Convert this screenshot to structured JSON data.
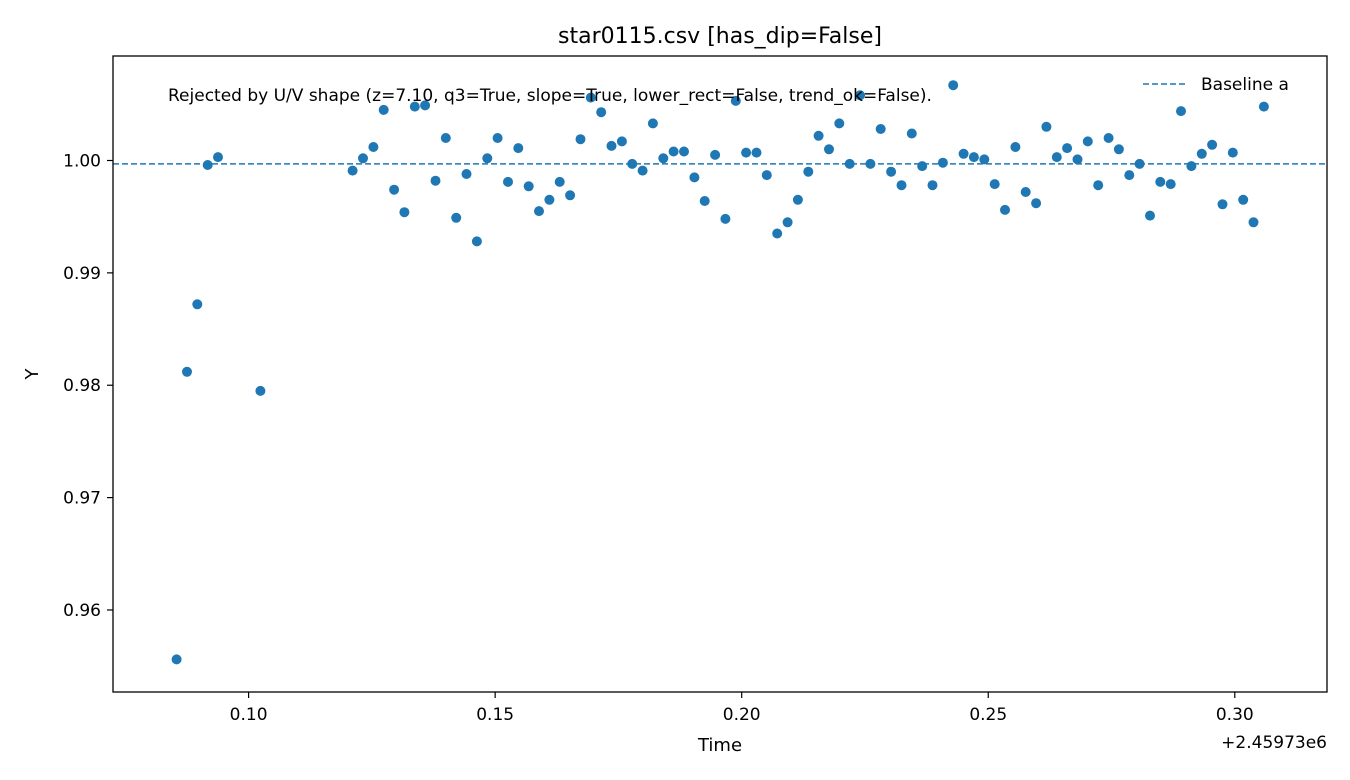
{
  "chart_data": {
    "type": "scatter",
    "title": "star0115.csv [has_dip=False]",
    "xlabel": "Time",
    "ylabel": "Y",
    "x_offset_label": "+2.45973e6",
    "annotation": "Rejected by U/V shape (z=7.10, q3=True, slope=True, lower_rect=False, trend_ok=False).",
    "legend_position": "top-right",
    "grid": false,
    "xlim": [
      0.0725,
      0.3187
    ],
    "ylim": [
      0.9527,
      1.0093
    ],
    "x_ticks": [
      0.1,
      0.15,
      0.2,
      0.25,
      0.3
    ],
    "x_tick_labels": [
      "0.10",
      "0.15",
      "0.20",
      "0.25",
      "0.30"
    ],
    "y_ticks": [
      0.96,
      0.97,
      0.98,
      0.99,
      1.0
    ],
    "y_tick_labels": [
      "0.96",
      "0.97",
      "0.98",
      "0.99",
      "1.00"
    ],
    "series": [
      {
        "kind": "scatter",
        "color": "#1f77b4",
        "points": [
          [
            0.0854,
            0.9556
          ],
          [
            0.0875,
            0.9812
          ],
          [
            0.0896,
            0.9872
          ],
          [
            0.0917,
            0.9996
          ],
          [
            0.0938,
            1.0003
          ],
          [
            0.1024,
            0.9795
          ],
          [
            0.1211,
            0.9991
          ],
          [
            0.1232,
            1.0002
          ],
          [
            0.1253,
            1.0012
          ],
          [
            0.1274,
            1.0045
          ],
          [
            0.1295,
            0.9974
          ],
          [
            0.1316,
            0.9954
          ],
          [
            0.1337,
            1.0048
          ],
          [
            0.1358,
            1.0049
          ],
          [
            0.1379,
            0.9982
          ],
          [
            0.14,
            1.002
          ],
          [
            0.1421,
            0.9949
          ],
          [
            0.1442,
            0.9988
          ],
          [
            0.1463,
            0.9928
          ],
          [
            0.1484,
            1.0002
          ],
          [
            0.1505,
            1.002
          ],
          [
            0.1526,
            0.9981
          ],
          [
            0.1547,
            1.0011
          ],
          [
            0.1568,
            0.9977
          ],
          [
            0.1589,
            0.9955
          ],
          [
            0.161,
            0.9965
          ],
          [
            0.1631,
            0.9981
          ],
          [
            0.1652,
            0.9969
          ],
          [
            0.1673,
            1.0019
          ],
          [
            0.1694,
            1.0056
          ],
          [
            0.1715,
            1.0043
          ],
          [
            0.1736,
            1.0013
          ],
          [
            0.1757,
            1.0017
          ],
          [
            0.1778,
            0.9997
          ],
          [
            0.1799,
            0.9991
          ],
          [
            0.182,
            1.0033
          ],
          [
            0.1841,
            1.0002
          ],
          [
            0.1862,
            1.0008
          ],
          [
            0.1883,
            1.0008
          ],
          [
            0.1904,
            0.9985
          ],
          [
            0.1925,
            0.9964
          ],
          [
            0.1946,
            1.0005
          ],
          [
            0.1967,
            0.9948
          ],
          [
            0.1988,
            1.0053
          ],
          [
            0.2009,
            1.0007
          ],
          [
            0.203,
            1.0007
          ],
          [
            0.2051,
            0.9987
          ],
          [
            0.2072,
            0.9935
          ],
          [
            0.2093,
            0.9945
          ],
          [
            0.2114,
            0.9965
          ],
          [
            0.2135,
            0.999
          ],
          [
            0.2156,
            1.0022
          ],
          [
            0.2177,
            1.001
          ],
          [
            0.2198,
            1.0033
          ],
          [
            0.2219,
            0.9997
          ],
          [
            0.224,
            1.0058
          ],
          [
            0.2261,
            0.9997
          ],
          [
            0.2282,
            1.0028
          ],
          [
            0.2303,
            0.999
          ],
          [
            0.2324,
            0.9978
          ],
          [
            0.2345,
            1.0024
          ],
          [
            0.2366,
            0.9995
          ],
          [
            0.2387,
            0.9978
          ],
          [
            0.2408,
            0.9998
          ],
          [
            0.2429,
            1.0067
          ],
          [
            0.245,
            1.0006
          ],
          [
            0.2471,
            1.0003
          ],
          [
            0.2492,
            1.0001
          ],
          [
            0.2513,
            0.9979
          ],
          [
            0.2534,
            0.9956
          ],
          [
            0.2555,
            1.0012
          ],
          [
            0.2576,
            0.9972
          ],
          [
            0.2597,
            0.9962
          ],
          [
            0.2618,
            1.003
          ],
          [
            0.2639,
            1.0003
          ],
          [
            0.266,
            1.0011
          ],
          [
            0.2681,
            1.0001
          ],
          [
            0.2702,
            1.0017
          ],
          [
            0.2723,
            0.9978
          ],
          [
            0.2744,
            1.002
          ],
          [
            0.2765,
            1.001
          ],
          [
            0.2786,
            0.9987
          ],
          [
            0.2807,
            0.9997
          ],
          [
            0.2828,
            0.9951
          ],
          [
            0.2849,
            0.9981
          ],
          [
            0.287,
            0.9979
          ],
          [
            0.2891,
            1.0044
          ],
          [
            0.2912,
            0.9995
          ],
          [
            0.2933,
            1.0006
          ],
          [
            0.2954,
            1.0014
          ],
          [
            0.2975,
            0.9961
          ],
          [
            0.2996,
            1.0007
          ],
          [
            0.3017,
            0.9965
          ],
          [
            0.3038,
            0.9945
          ],
          [
            0.3059,
            1.0048
          ]
        ]
      },
      {
        "kind": "hline",
        "name": "Baseline a",
        "color": "#1f77b4",
        "style": "dashed",
        "y": 0.9997
      }
    ]
  }
}
